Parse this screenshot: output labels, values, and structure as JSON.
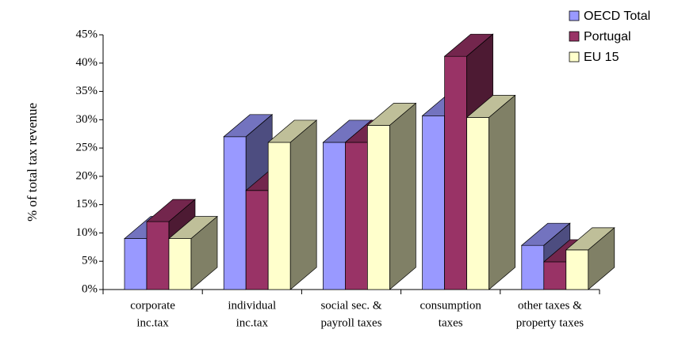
{
  "chart_data": {
    "type": "bar3d",
    "y_axis_label": "% of total tax revenue",
    "categories": [
      [
        "corporate",
        "inc.tax"
      ],
      [
        "individual",
        "inc.tax"
      ],
      [
        "social sec. &",
        "payroll taxes"
      ],
      [
        "consumption",
        "taxes"
      ],
      [
        "other taxes &",
        "property taxes"
      ]
    ],
    "series": [
      {
        "name": "OECD Total",
        "color": "#9999ff",
        "values": [
          9,
          27,
          26,
          30.7,
          7.8
        ]
      },
      {
        "name": "Portugal",
        "color": "#993366",
        "values": [
          12,
          17.5,
          26,
          41.2,
          4.9
        ]
      },
      {
        "name": "EU 15",
        "color": "#ffffcc",
        "values": [
          9,
          26,
          29,
          30.4,
          7
        ]
      }
    ],
    "ylim": [
      0,
      45
    ],
    "yticks": [
      {
        "value": 0,
        "label": "0%"
      },
      {
        "value": 5,
        "label": "5%"
      },
      {
        "value": 10,
        "label": "10%"
      },
      {
        "value": 15,
        "label": "15%"
      },
      {
        "value": 20,
        "label": "20%"
      },
      {
        "value": 25,
        "label": "25%"
      },
      {
        "value": 30,
        "label": "30%"
      },
      {
        "value": 35,
        "label": "35%"
      },
      {
        "value": 40,
        "label": "40%"
      },
      {
        "value": 45,
        "label": "45%"
      }
    ],
    "legend": "top-right"
  }
}
